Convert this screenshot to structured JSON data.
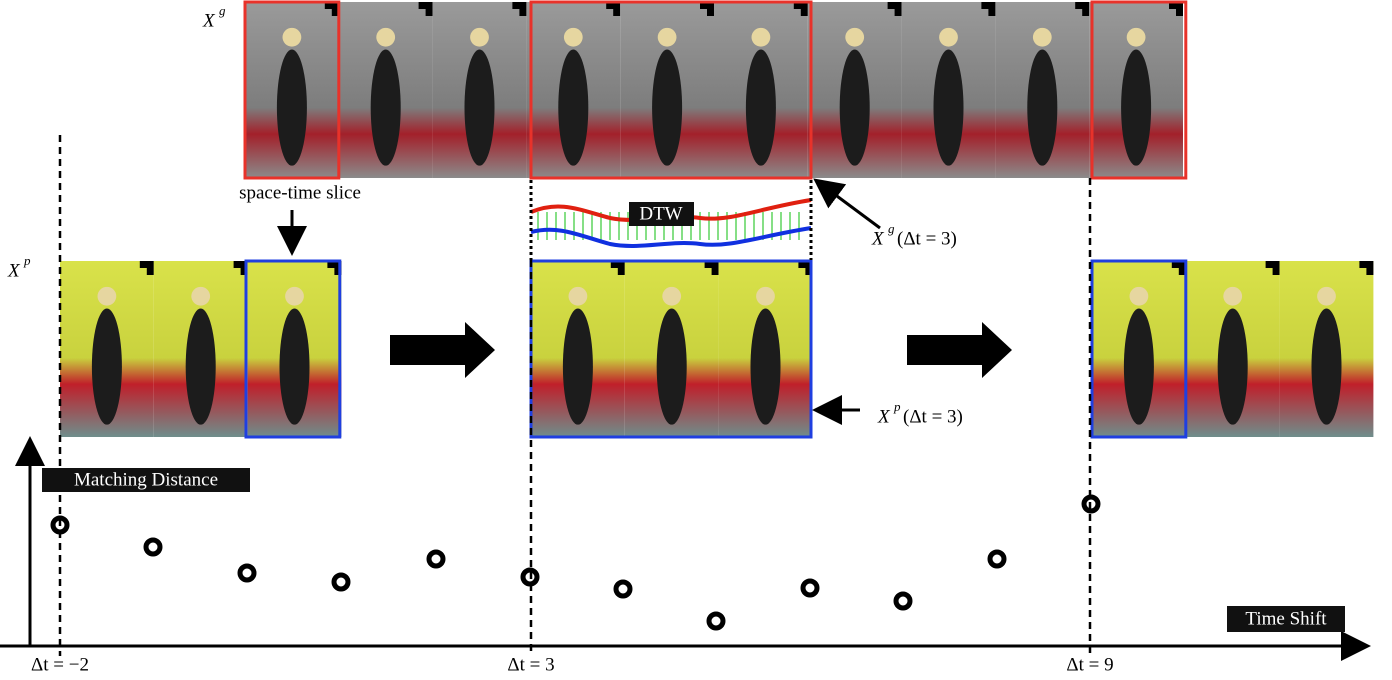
{
  "gallery_label": {
    "base": "X",
    "sup": "g"
  },
  "probe_label": {
    "base": "X",
    "sup": "p"
  },
  "slice_label": "space-time slice",
  "dtw_label": "DTW",
  "gallery_shift_label": {
    "base": "X",
    "sup": "g",
    "arg": "(Δt = 3)"
  },
  "probe_shift_label": {
    "base": "X",
    "sup": "p",
    "arg": "(Δt = 3)"
  },
  "y_axis_label": "Matching Distance",
  "x_axis_label": "Time Shift",
  "shift_labels": [
    "Δt = −2",
    "Δt = 3",
    "Δt = 9"
  ]
}
